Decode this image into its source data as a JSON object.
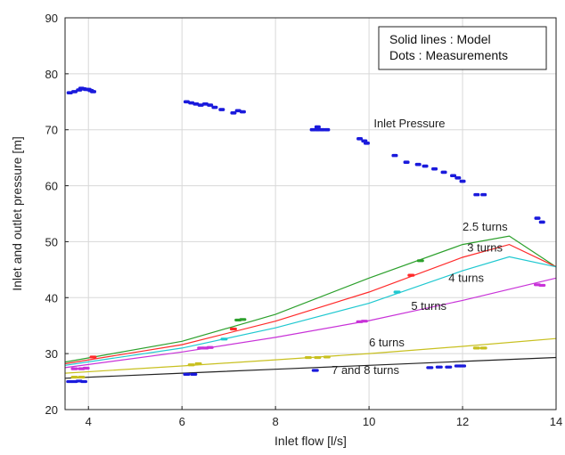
{
  "chart_data": {
    "type": "line",
    "xlabel": "Inlet flow [l/s]",
    "ylabel": "Inlet and outlet pressure [m]",
    "xlim": [
      3.5,
      14
    ],
    "ylim": [
      20,
      90
    ],
    "xticks": [
      4,
      6,
      8,
      10,
      12,
      14
    ],
    "yticks": [
      20,
      30,
      40,
      50,
      60,
      70,
      80,
      90
    ],
    "grid": true,
    "legend_box": {
      "position": "top-right",
      "lines": [
        "Solid lines : Model",
        "Dots : Measurements"
      ]
    },
    "model_series": [
      {
        "label": "2.5 turns",
        "color": "#2ca02c",
        "x": [
          3.5,
          6,
          8,
          10,
          12,
          13,
          14
        ],
        "y": [
          28.5,
          32.2,
          37.0,
          43.5,
          49.5,
          51.0,
          45.5
        ],
        "label_at": [
          12.0,
          52.0
        ]
      },
      {
        "label": "3 turns",
        "color": "#ff2a2a",
        "x": [
          3.5,
          6,
          8,
          10,
          12,
          13,
          14
        ],
        "y": [
          28.2,
          31.6,
          35.8,
          41.0,
          47.2,
          49.5,
          45.5
        ],
        "label_at": [
          12.1,
          48.2
        ]
      },
      {
        "label": "4 turns",
        "color": "#1fc8d0",
        "x": [
          3.5,
          6,
          8,
          10,
          12,
          13,
          14
        ],
        "y": [
          27.9,
          31.0,
          34.6,
          39.0,
          44.8,
          47.3,
          45.5
        ],
        "label_at": [
          11.7,
          42.8
        ]
      },
      {
        "label": "5 turns",
        "color": "#c832d8",
        "x": [
          3.5,
          6,
          8,
          10,
          12,
          14
        ],
        "y": [
          27.5,
          30.3,
          32.9,
          35.9,
          39.5,
          43.5
        ],
        "label_at": [
          10.9,
          37.8
        ]
      },
      {
        "label": "6 turns",
        "color": "#c8c020",
        "x": [
          3.5,
          6,
          8,
          10,
          12,
          14
        ],
        "y": [
          26.5,
          27.8,
          28.9,
          30.0,
          31.3,
          32.7
        ],
        "label_at": [
          10.0,
          31.3
        ]
      },
      {
        "label": "7 and 8 turns",
        "color": "#222222",
        "x": [
          3.5,
          6,
          8,
          10,
          12,
          14
        ],
        "y": [
          25.6,
          26.5,
          27.2,
          27.9,
          28.6,
          29.3
        ],
        "label_at": [
          9.2,
          26.4
        ]
      }
    ],
    "inlet_pressure": {
      "label": "Inlet Pressure",
      "label_at": [
        10.1,
        70.4
      ],
      "color": "#1a1adc",
      "points": [
        [
          3.6,
          76.6
        ],
        [
          3.7,
          76.8
        ],
        [
          3.8,
          77.1
        ],
        [
          3.85,
          77.4
        ],
        [
          3.9,
          77.3
        ],
        [
          3.95,
          77.2
        ],
        [
          4.0,
          77.2
        ],
        [
          4.05,
          77.0
        ],
        [
          4.1,
          76.8
        ],
        [
          6.1,
          75.0
        ],
        [
          6.2,
          74.8
        ],
        [
          6.3,
          74.6
        ],
        [
          6.4,
          74.4
        ],
        [
          6.5,
          74.6
        ],
        [
          6.6,
          74.4
        ],
        [
          6.7,
          74.0
        ],
        [
          6.85,
          73.6
        ],
        [
          7.1,
          73.0
        ],
        [
          7.2,
          73.4
        ],
        [
          7.3,
          73.2
        ],
        [
          8.8,
          70.0
        ],
        [
          8.9,
          70.0
        ],
        [
          8.9,
          70.5
        ],
        [
          9.0,
          70.0
        ],
        [
          9.1,
          70.0
        ],
        [
          9.8,
          68.4
        ],
        [
          9.9,
          68.0
        ],
        [
          9.95,
          67.6
        ],
        [
          10.55,
          65.4
        ],
        [
          10.8,
          64.2
        ],
        [
          11.05,
          63.8
        ],
        [
          11.2,
          63.5
        ],
        [
          11.4,
          63.0
        ],
        [
          11.6,
          62.4
        ],
        [
          11.8,
          61.8
        ],
        [
          11.9,
          61.4
        ],
        [
          12.0,
          60.8
        ],
        [
          12.3,
          58.4
        ],
        [
          12.45,
          58.4
        ],
        [
          13.6,
          54.2
        ],
        [
          13.7,
          53.5
        ]
      ]
    },
    "measurements": [
      {
        "series": "2.5 turns",
        "color": "#2ca02c",
        "points": [
          [
            7.2,
            36.0
          ],
          [
            7.3,
            36.1
          ],
          [
            11.1,
            46.6
          ]
        ]
      },
      {
        "series": "3 turns",
        "color": "#ff2a2a",
        "points": [
          [
            4.1,
            29.4
          ],
          [
            7.1,
            34.4
          ],
          [
            10.9,
            44.0
          ]
        ]
      },
      {
        "series": "4 turns",
        "color": "#1fc8d0",
        "points": [
          [
            6.9,
            32.6
          ],
          [
            10.6,
            41.0
          ]
        ]
      },
      {
        "series": "5 turns",
        "color": "#c832d8",
        "points": [
          [
            3.7,
            27.3
          ],
          [
            3.85,
            27.3
          ],
          [
            3.95,
            27.4
          ],
          [
            6.4,
            31.0
          ],
          [
            6.5,
            31.0
          ],
          [
            6.6,
            31.1
          ],
          [
            9.8,
            35.7
          ],
          [
            9.9,
            35.8
          ],
          [
            13.6,
            42.3
          ],
          [
            13.7,
            42.2
          ]
        ]
      },
      {
        "series": "6 turns",
        "color": "#c8c020",
        "points": [
          [
            3.7,
            25.8
          ],
          [
            3.85,
            25.8
          ],
          [
            6.2,
            28.0
          ],
          [
            6.35,
            28.2
          ],
          [
            8.7,
            29.3
          ],
          [
            8.9,
            29.3
          ],
          [
            9.1,
            29.4
          ],
          [
            12.3,
            31.0
          ],
          [
            12.45,
            31.0
          ]
        ]
      },
      {
        "series": "7 and 8 turns",
        "color": "#1a1adc",
        "points": [
          [
            3.6,
            25.0
          ],
          [
            3.7,
            25.0
          ],
          [
            3.8,
            25.1
          ],
          [
            3.9,
            25.0
          ],
          [
            6.1,
            26.3
          ],
          [
            6.25,
            26.3
          ],
          [
            8.85,
            27.0
          ],
          [
            11.3,
            27.5
          ],
          [
            11.5,
            27.6
          ],
          [
            11.7,
            27.6
          ],
          [
            11.9,
            27.8
          ],
          [
            12.0,
            27.8
          ]
        ]
      }
    ]
  }
}
